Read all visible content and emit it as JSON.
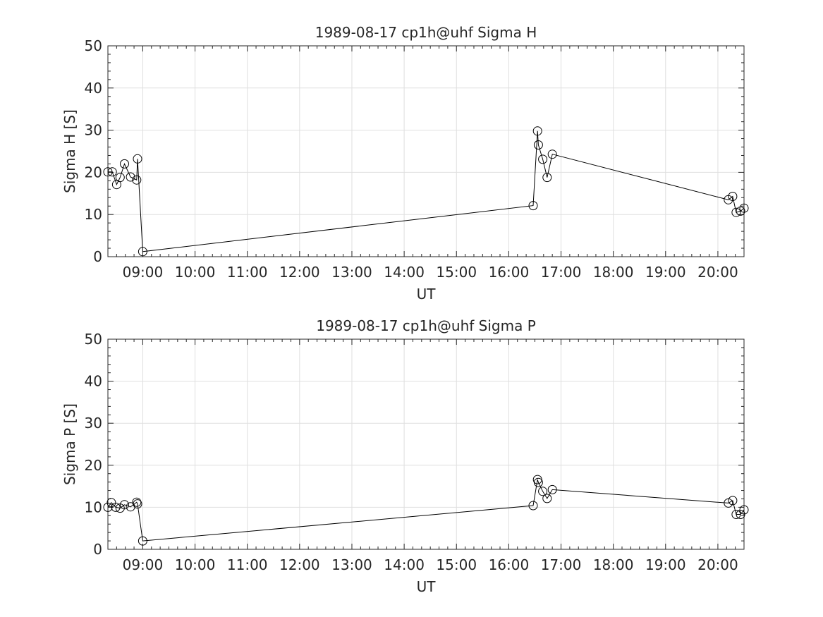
{
  "chart_data": [
    {
      "type": "line",
      "title": "1989-08-17  cp1h@uhf Sigma H",
      "xlabel": "UT",
      "ylabel": "Sigma H [S]",
      "xlim": [
        "08:20",
        "20:30"
      ],
      "ylim": [
        0,
        50
      ],
      "xticks": [
        "09:00",
        "10:00",
        "11:00",
        "12:00",
        "13:00",
        "14:00",
        "15:00",
        "16:00",
        "17:00",
        "18:00",
        "19:00",
        "20:00"
      ],
      "yticks": [
        0,
        10,
        20,
        30,
        40,
        50
      ],
      "grid": true,
      "marker": "open-circle",
      "color": "#000000",
      "series": [
        {
          "x": [
            "08:20",
            "08:25",
            "08:30",
            "08:34",
            "08:39",
            "08:46",
            "08:53",
            "08:54",
            "09:00",
            "16:28",
            "16:33",
            "16:34",
            "16:39",
            "16:44",
            "16:50",
            "20:12",
            "20:17",
            "20:21",
            "20:26",
            "20:30"
          ],
          "y": [
            20.1,
            20.1,
            17.1,
            18.8,
            22.0,
            18.9,
            18.2,
            23.2,
            1.2,
            12.1,
            29.8,
            26.5,
            23.1,
            18.8,
            24.3,
            13.5,
            14.3,
            10.5,
            10.8,
            11.5
          ]
        }
      ]
    },
    {
      "type": "line",
      "title": "1989-08-17  cp1h@uhf Sigma P",
      "xlabel": "UT",
      "ylabel": "Sigma P [S]",
      "xlim": [
        "08:20",
        "20:30"
      ],
      "ylim": [
        0,
        50
      ],
      "xticks": [
        "09:00",
        "10:00",
        "11:00",
        "12:00",
        "13:00",
        "14:00",
        "15:00",
        "16:00",
        "17:00",
        "18:00",
        "19:00",
        "20:00"
      ],
      "yticks": [
        0,
        10,
        20,
        30,
        40,
        50
      ],
      "grid": true,
      "marker": "open-circle",
      "color": "#000000",
      "series": [
        {
          "x": [
            "08:20",
            "08:24",
            "08:29",
            "08:34",
            "08:39",
            "08:46",
            "08:53",
            "08:54",
            "09:00",
            "16:28",
            "16:33",
            "16:34",
            "16:39",
            "16:44",
            "16:50",
            "20:12",
            "20:17",
            "20:21",
            "20:26",
            "20:30"
          ],
          "y": [
            10.0,
            11.1,
            10.0,
            9.8,
            10.6,
            10.1,
            11.2,
            10.8,
            2.0,
            10.4,
            16.6,
            15.9,
            13.8,
            12.1,
            14.2,
            11.0,
            11.6,
            8.3,
            8.3,
            9.4
          ]
        }
      ]
    }
  ]
}
